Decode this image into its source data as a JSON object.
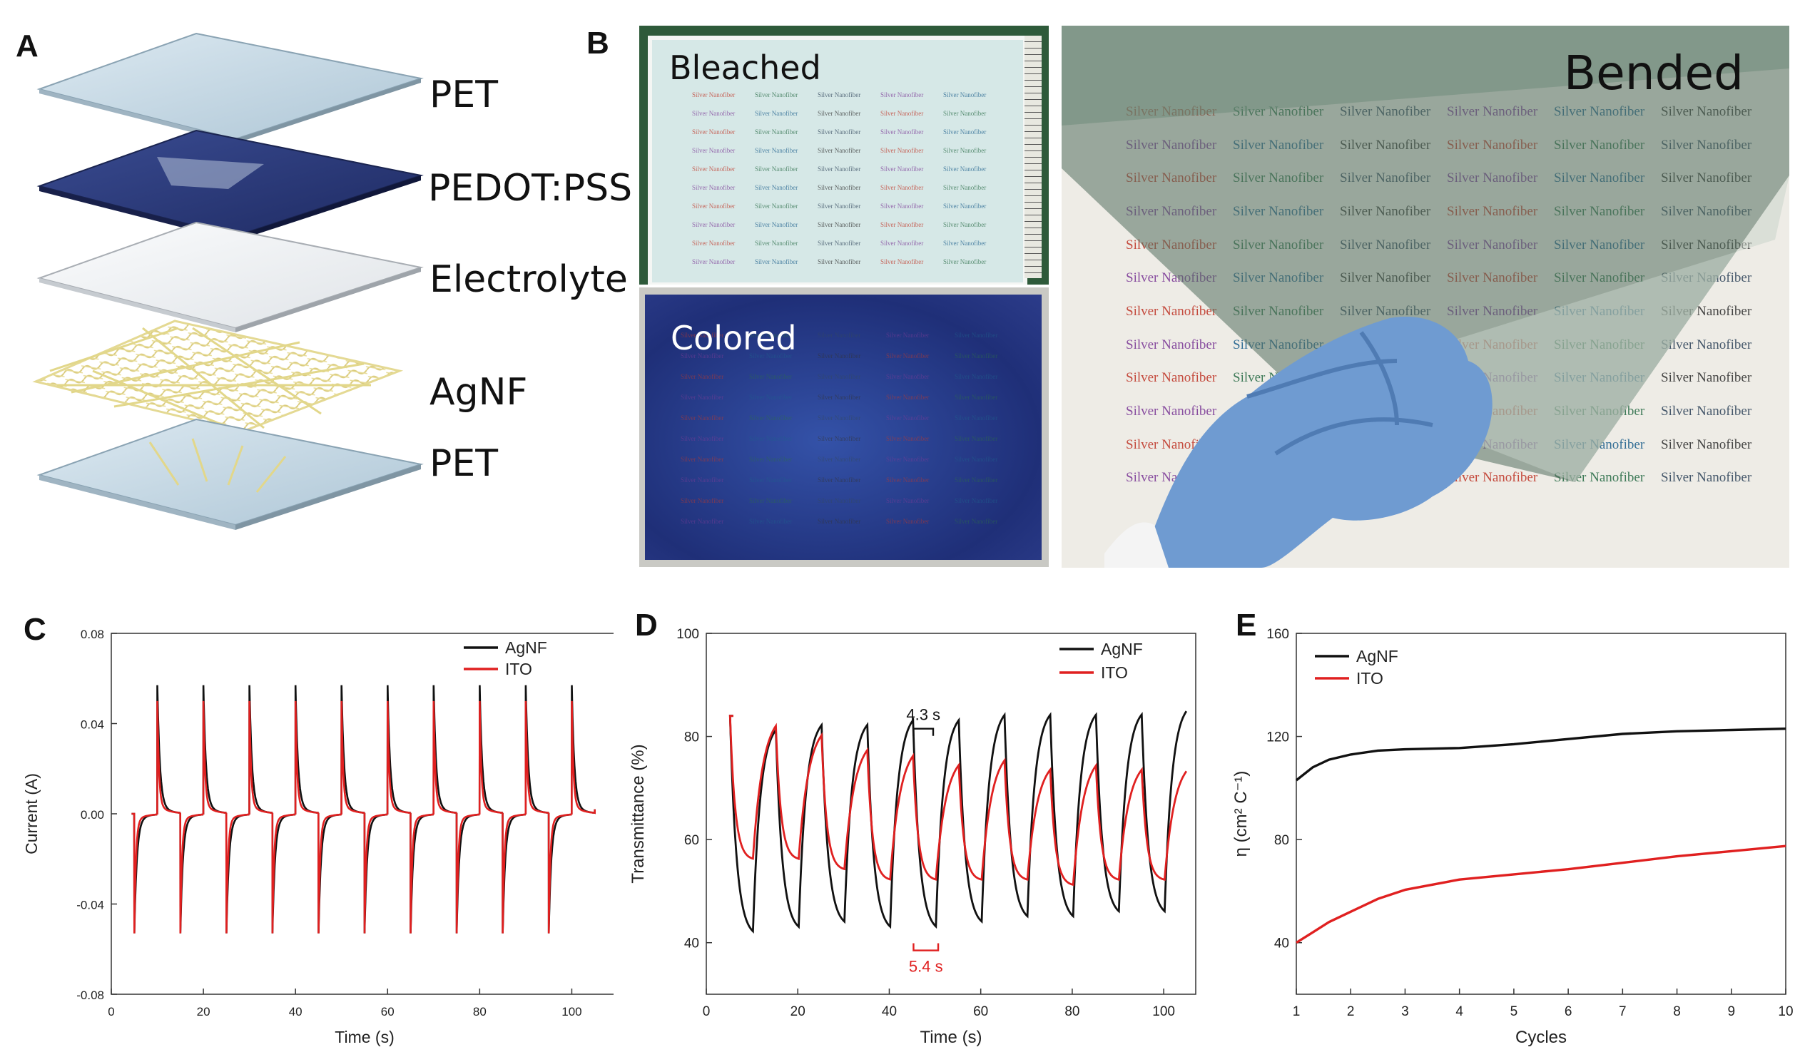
{
  "panels": {
    "a": "A",
    "b": "B",
    "c": "C",
    "d": "D",
    "e": "E"
  },
  "panel_a": {
    "layers": [
      "PET",
      "PEDOT:PSS",
      "Electrolyte",
      "AgNF",
      "PET"
    ],
    "colors": {
      "pet": "#c9dbe6",
      "pedot": "#2c3b7a",
      "electrolyte": "#eef0f2",
      "agnf": "#e9df9a"
    }
  },
  "panel_b": {
    "bleached": "Bleached",
    "colored": "Colored",
    "bended": "Bended",
    "sheet_text": "Silver Nanofiber",
    "colors": {
      "bleached_bg": "#d4e7e6",
      "colored_bg": "#2b3f92",
      "bended_bg": "#eeece6",
      "glove": "#6d99cf"
    }
  },
  "chart_data": [
    {
      "id": "C",
      "type": "line",
      "title": "",
      "xlabel": "Time (s)",
      "ylabel": "Current (A)",
      "xlim": [
        0,
        110
      ],
      "ylim": [
        -0.08,
        0.08
      ],
      "xticks": [
        0,
        20,
        40,
        60,
        80,
        100
      ],
      "yticks": [
        -0.08,
        -0.04,
        0.0,
        0.04,
        0.08
      ],
      "tick_labels_y": [
        "-0.08",
        "-0.04",
        "0.00",
        "0.04",
        "0.08"
      ],
      "legend": "top-right",
      "series": [
        {
          "name": "AgNF",
          "color": "#111111",
          "switch_times": [
            5,
            10,
            15,
            20,
            25,
            30,
            35,
            40,
            45,
            50,
            55,
            60,
            65,
            70,
            75,
            80,
            85,
            90,
            95,
            100
          ],
          "color_peak": -0.05,
          "bleach_peak": 0.053
        },
        {
          "name": "ITO",
          "color": "#e02020",
          "switch_times": [
            5,
            10,
            15,
            20,
            25,
            30,
            35,
            40,
            45,
            50,
            55,
            60,
            65,
            70,
            75,
            80,
            85,
            90,
            95,
            100
          ],
          "color_peak": -0.05,
          "bleach_peak": 0.046
        }
      ],
      "x_end": 105
    },
    {
      "id": "D",
      "type": "line",
      "title": "",
      "xlabel": "Time (s)",
      "ylabel": "Transmittance (%)",
      "xlim": [
        0,
        107
      ],
      "ylim": [
        30,
        100
      ],
      "xticks": [
        0,
        20,
        40,
        60,
        80,
        100
      ],
      "yticks": [
        40,
        60,
        80,
        100
      ],
      "legend": "top-right",
      "annotations": [
        {
          "text": "4.3 s",
          "x_start": 45.3,
          "x_end": 49.6,
          "y": 81.5,
          "color": "#111111"
        },
        {
          "text": "5.4 s",
          "x_start": 45.3,
          "x_end": 50.7,
          "y": 38.5,
          "color": "#e02020"
        }
      ],
      "series": [
        {
          "name": "AgNF",
          "color": "#111111",
          "start": 84,
          "highs": [
            83,
            84,
            84,
            85,
            85,
            86,
            86,
            86,
            86,
            87
          ],
          "lows": [
            41,
            42,
            43,
            42,
            42,
            43,
            44,
            44,
            45,
            45
          ],
          "period": 10,
          "first_switch": 5,
          "x_end": 105
        },
        {
          "name": "ITO",
          "color": "#e02020",
          "start": 84,
          "highs": [
            85,
            83,
            80,
            79,
            77,
            78,
            76,
            77,
            76,
            76
          ],
          "lows": [
            56,
            56,
            54,
            52,
            52,
            52,
            52,
            51,
            52,
            52
          ],
          "period": 10,
          "first_switch": 5,
          "x_end": 105
        }
      ]
    },
    {
      "id": "E",
      "type": "line",
      "title": "",
      "xlabel": "Cycles",
      "ylabel": "η (cm² C⁻¹)",
      "xlim": [
        1,
        10
      ],
      "ylim": [
        20,
        160
      ],
      "xticks": [
        1,
        2,
        3,
        4,
        5,
        6,
        7,
        8,
        9,
        10
      ],
      "yticks": [
        40,
        80,
        120,
        160
      ],
      "legend": "top-left",
      "series": [
        {
          "name": "AgNF",
          "color": "#111111",
          "x": [
            1,
            1.3,
            1.6,
            2,
            2.5,
            3,
            4,
            5,
            6,
            7,
            8,
            9,
            10
          ],
          "y": [
            103,
            108,
            111,
            113,
            114.5,
            115,
            115.5,
            117,
            119,
            121,
            122,
            122.5,
            123
          ]
        },
        {
          "name": "ITO",
          "color": "#e02020",
          "x": [
            1,
            1.3,
            1.6,
            2,
            2.5,
            3,
            4,
            5,
            6,
            7,
            8,
            9,
            10
          ],
          "y": [
            40,
            44,
            48,
            52,
            57,
            60.5,
            64.5,
            66.5,
            68.5,
            71,
            73.5,
            75.5,
            77.5
          ]
        }
      ]
    }
  ]
}
